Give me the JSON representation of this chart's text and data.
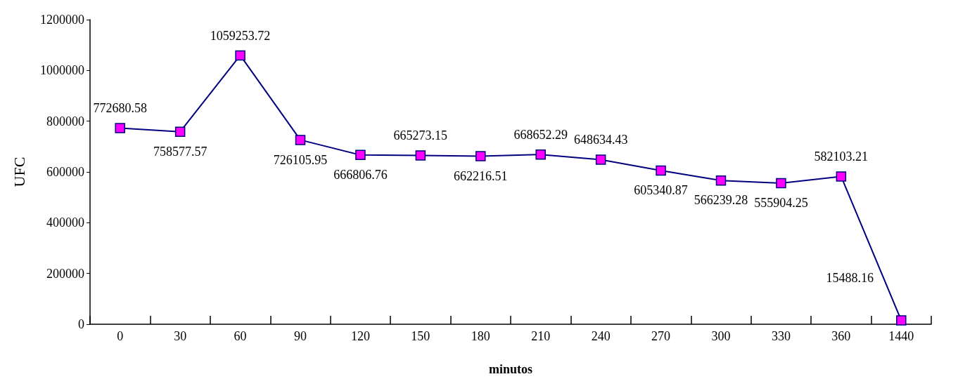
{
  "chart_data": {
    "type": "line",
    "xlabel": "minutos",
    "ylabel": "UFC",
    "categories": [
      "0",
      "30",
      "60",
      "90",
      "120",
      "150",
      "180",
      "210",
      "240",
      "270",
      "300",
      "330",
      "360",
      "1440"
    ],
    "series": [
      {
        "color": "#000080",
        "values": [
          772680.58,
          758577.57,
          1059253.72,
          726105.95,
          666806.76,
          665273.15,
          662216.51,
          668652.29,
          648634.43,
          605340.87,
          566239.28,
          555904.25,
          582103.21,
          15488.16
        ]
      }
    ],
    "ylim": [
      0,
      1200000
    ],
    "yticks": [
      0,
      200000,
      400000,
      600000,
      800000,
      1000000,
      1200000
    ],
    "grid": false,
    "marker": "square",
    "line_style": "solid",
    "data_labels": true
  }
}
